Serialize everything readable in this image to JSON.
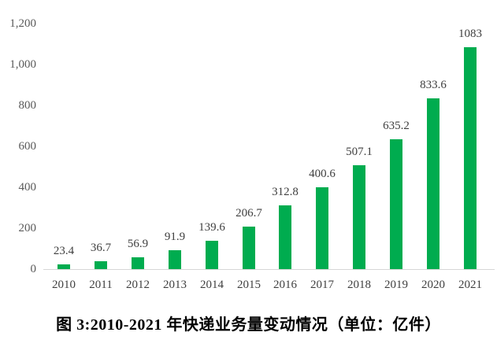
{
  "figure": {
    "caption": "图 3:2010-2021 年快递业务量变动情况（单位：亿件）"
  },
  "chart_data": {
    "type": "bar",
    "title": "",
    "xlabel": "",
    "ylabel": "",
    "categories": [
      "2010",
      "2011",
      "2012",
      "2013",
      "2014",
      "2015",
      "2016",
      "2017",
      "2018",
      "2019",
      "2020",
      "2021"
    ],
    "values": [
      23.4,
      36.7,
      56.9,
      91.9,
      139.6,
      206.7,
      312.8,
      400.6,
      507.1,
      635.2,
      833.6,
      1083
    ],
    "data_labels": [
      "23.4",
      "36.7",
      "56.9",
      "91.9",
      "139.6",
      "206.7",
      "312.8",
      "400.6",
      "507.1",
      "635.2",
      "833.6",
      "1083"
    ],
    "ylim": [
      0,
      1200
    ],
    "yticks": [
      {
        "value": 0,
        "label": "0"
      },
      {
        "value": 200,
        "label": "200"
      },
      {
        "value": 400,
        "label": "400"
      },
      {
        "value": 600,
        "label": "600"
      },
      {
        "value": 800,
        "label": "800"
      },
      {
        "value": 1000,
        "label": "1,000"
      },
      {
        "value": 1200,
        "label": "1,200"
      }
    ],
    "grid": false,
    "legend": "none",
    "unit": "亿件",
    "colors": {
      "bar": "#00ac4f",
      "axis_line": "#d6d6d6",
      "y_tick_text": "#595959",
      "x_tick_text": "#3f3f3f",
      "data_label_text": "#3f3f3f",
      "caption_text": "#000000",
      "background": "#ffffff"
    }
  }
}
